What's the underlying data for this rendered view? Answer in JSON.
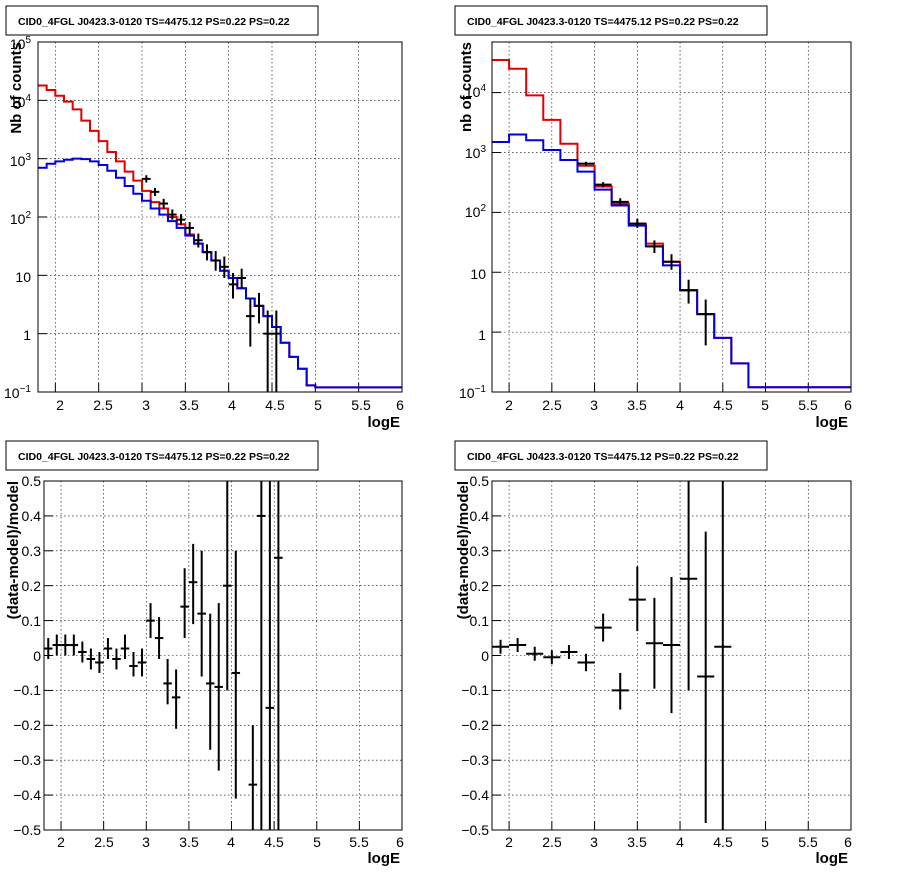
{
  "figure": {
    "panel_title": "CID0_4FGL J0423.3-0120 TS=4475.12 PS=0.22 PS=0.22"
  },
  "chart_data": [
    {
      "type": "histogram",
      "title": "CID0_4FGL J0423.3-0120 TS=4475.12 PS=0.22 PS=0.22",
      "xlabel": "logE",
      "ylabel": "Nb of counts",
      "xlim": [
        1.8,
        6.0
      ],
      "ylim": [
        0.1,
        100000
      ],
      "yscale": "log",
      "grid": true,
      "x_ticks": [
        2,
        2.5,
        3,
        3.5,
        4,
        4.5,
        5,
        5.5,
        6
      ],
      "x_tick_labels": [
        "2",
        "2.5",
        "3",
        "3.5",
        "4",
        "4.5",
        "5",
        "5.5",
        "6"
      ],
      "y_ticks": [
        0.1,
        1,
        10,
        100,
        1000,
        10000,
        100000
      ],
      "y_tick_labels": [
        {
          "base": "10",
          "exp": "−1"
        },
        {
          "base": "1",
          "exp": ""
        },
        {
          "base": "10",
          "exp": ""
        },
        {
          "base": "10",
          "exp": "2"
        },
        {
          "base": "10",
          "exp": "3"
        },
        {
          "base": "10",
          "exp": "4"
        },
        {
          "base": "10",
          "exp": "5"
        }
      ],
      "bin_edges": [
        1.8,
        1.9,
        2.0,
        2.1,
        2.2,
        2.3,
        2.4,
        2.5,
        2.6,
        2.7,
        2.8,
        2.9,
        3.0,
        3.1,
        3.2,
        3.3,
        3.4,
        3.5,
        3.6,
        3.7,
        3.8,
        3.9,
        4.0,
        4.1,
        4.2,
        4.3,
        4.4,
        4.5,
        4.6,
        4.7,
        4.8,
        4.9,
        5.0,
        5.1,
        5.2,
        5.3,
        5.4,
        5.5,
        5.6,
        5.7,
        5.8,
        5.9,
        6.0
      ],
      "series": [
        {
          "color": "#e00000",
          "values": [
            18000,
            15000,
            12000,
            9500,
            7000,
            4500,
            3000,
            2000,
            1300,
            900,
            600,
            420,
            280,
            180,
            140,
            100,
            75,
            50,
            35,
            25,
            18,
            12,
            9,
            6,
            4,
            3,
            2,
            1.3,
            0.7,
            0.4,
            0.25,
            0.13,
            0.12,
            0.12,
            0.12,
            0.12,
            0.12,
            0.12,
            0.12,
            0.12,
            0.12,
            0.12
          ]
        },
        {
          "color": "#0000e0",
          "values": [
            700,
            820,
            900,
            960,
            1000,
            980,
            900,
            780,
            620,
            470,
            340,
            250,
            190,
            140,
            110,
            85,
            65,
            48,
            35,
            25,
            18,
            12,
            9,
            6,
            4,
            3,
            2,
            1.3,
            0.7,
            0.4,
            0.25,
            0.13,
            0.12,
            0.12,
            0.12,
            0.12,
            0.12,
            0.12,
            0.12,
            0.12,
            0.12,
            0.12
          ]
        }
      ],
      "data_points": [
        {
          "x": 3.05,
          "y": 450,
          "ylow": 390,
          "yhigh": 520
        },
        {
          "x": 3.15,
          "y": 270,
          "ylow": 230,
          "yhigh": 315
        },
        {
          "x": 3.25,
          "y": 170,
          "ylow": 140,
          "yhigh": 205
        },
        {
          "x": 3.35,
          "y": 110,
          "ylow": 90,
          "yhigh": 135
        },
        {
          "x": 3.45,
          "y": 90,
          "ylow": 72,
          "yhigh": 112
        },
        {
          "x": 3.55,
          "y": 65,
          "ylow": 50,
          "yhigh": 82
        },
        {
          "x": 3.65,
          "y": 40,
          "ylow": 30,
          "yhigh": 52
        },
        {
          "x": 3.75,
          "y": 25,
          "ylow": 18,
          "yhigh": 34
        },
        {
          "x": 3.85,
          "y": 18,
          "ylow": 12,
          "yhigh": 26
        },
        {
          "x": 3.95,
          "y": 14,
          "ylow": 9,
          "yhigh": 21
        },
        {
          "x": 4.05,
          "y": 7,
          "ylow": 4,
          "yhigh": 11
        },
        {
          "x": 4.15,
          "y": 9,
          "ylow": 6,
          "yhigh": 13
        },
        {
          "x": 4.25,
          "y": 2,
          "ylow": 0.6,
          "yhigh": 4
        },
        {
          "x": 4.35,
          "y": 3,
          "ylow": 1.5,
          "yhigh": 5
        },
        {
          "x": 4.45,
          "y": 1,
          "ylow": 0.1,
          "yhigh": 2.5
        },
        {
          "x": 4.55,
          "y": 1,
          "ylow": 0.1,
          "yhigh": 2.5
        }
      ]
    },
    {
      "type": "histogram",
      "title": "CID0_4FGL J0423.3-0120 TS=4475.12 PS=0.22 PS=0.22",
      "xlabel": "logE",
      "ylabel": "nb of counts",
      "xlim": [
        1.8,
        6.0
      ],
      "ylim": [
        0.1,
        70000
      ],
      "yscale": "log",
      "grid": true,
      "x_ticks": [
        2,
        2.5,
        3,
        3.5,
        4,
        4.5,
        5,
        5.5,
        6
      ],
      "x_tick_labels": [
        "2",
        "2.5",
        "3",
        "3.5",
        "4",
        "4.5",
        "5",
        "5.5",
        "6"
      ],
      "y_ticks": [
        0.1,
        1,
        10,
        100,
        1000,
        10000
      ],
      "y_tick_labels": [
        {
          "base": "10",
          "exp": "−1"
        },
        {
          "base": "1",
          "exp": ""
        },
        {
          "base": "10",
          "exp": ""
        },
        {
          "base": "10",
          "exp": "2"
        },
        {
          "base": "10",
          "exp": "3"
        },
        {
          "base": "10",
          "exp": "4"
        }
      ],
      "bin_edges": [
        1.8,
        2.0,
        2.2,
        2.4,
        2.6,
        2.8,
        3.0,
        3.2,
        3.4,
        3.6,
        3.8,
        4.0,
        4.2,
        4.4,
        4.6,
        4.8,
        5.0,
        5.2,
        5.4,
        5.6,
        5.8,
        6.0
      ],
      "series": [
        {
          "color": "#e00000",
          "values": [
            35000,
            25000,
            9000,
            3500,
            1400,
            600,
            270,
            140,
            65,
            30,
            15,
            5,
            2,
            0.8,
            0.3,
            0.12,
            0.12,
            0.12,
            0.12,
            0.12,
            0.12
          ]
        },
        {
          "color": "#0000e0",
          "values": [
            1500,
            2000,
            1600,
            1100,
            750,
            480,
            240,
            130,
            60,
            27,
            13,
            5,
            2,
            0.8,
            0.3,
            0.12,
            0.12,
            0.12,
            0.12,
            0.12,
            0.12
          ]
        }
      ],
      "data_points": [
        {
          "x": 2.9,
          "y": 650,
          "ylow": 600,
          "yhigh": 700
        },
        {
          "x": 3.1,
          "y": 290,
          "ylow": 260,
          "yhigh": 320
        },
        {
          "x": 3.3,
          "y": 150,
          "ylow": 130,
          "yhigh": 172
        },
        {
          "x": 3.5,
          "y": 65,
          "ylow": 55,
          "yhigh": 78
        },
        {
          "x": 3.7,
          "y": 27,
          "ylow": 21,
          "yhigh": 34
        },
        {
          "x": 3.9,
          "y": 15,
          "ylow": 11,
          "yhigh": 20
        },
        {
          "x": 4.1,
          "y": 5,
          "ylow": 3,
          "yhigh": 7.5
        },
        {
          "x": 4.3,
          "y": 2,
          "ylow": 0.6,
          "yhigh": 3.5
        }
      ]
    },
    {
      "type": "scatter",
      "title": "CID0_4FGL J0423.3-0120 TS=4475.12 PS=0.22 PS=0.22",
      "xlabel": "logE",
      "ylabel": "(data-model)/model",
      "xlim": [
        1.8,
        6.0
      ],
      "ylim": [
        -0.5,
        0.5
      ],
      "yscale": "linear",
      "grid": true,
      "x_ticks": [
        2,
        2.5,
        3,
        3.5,
        4,
        4.5,
        5,
        5.5,
        6
      ],
      "x_tick_labels": [
        "2",
        "2.5",
        "3",
        "3.5",
        "4",
        "4.5",
        "5",
        "5.5",
        "6"
      ],
      "y_ticks": [
        -0.5,
        -0.4,
        -0.3,
        -0.2,
        -0.1,
        0,
        0.1,
        0.2,
        0.3,
        0.4,
        0.5
      ],
      "y_tick_labels": [
        "−0.5",
        "−0.4",
        "−0.3",
        "−0.2",
        "−0.1",
        "0",
        "0.1",
        "0.2",
        "0.3",
        "0.4",
        "0.5"
      ],
      "half_width": 0.05,
      "data_points": [
        {
          "x": 1.85,
          "y": 0.02,
          "ylow": -0.01,
          "yhigh": 0.05
        },
        {
          "x": 1.95,
          "y": 0.03,
          "ylow": 0.0,
          "yhigh": 0.06
        },
        {
          "x": 2.05,
          "y": 0.03,
          "ylow": 0.0,
          "yhigh": 0.06
        },
        {
          "x": 2.15,
          "y": 0.03,
          "ylow": 0.0,
          "yhigh": 0.06
        },
        {
          "x": 2.25,
          "y": 0.01,
          "ylow": -0.02,
          "yhigh": 0.04
        },
        {
          "x": 2.35,
          "y": -0.01,
          "ylow": -0.04,
          "yhigh": 0.02
        },
        {
          "x": 2.45,
          "y": -0.02,
          "ylow": -0.05,
          "yhigh": 0.01
        },
        {
          "x": 2.55,
          "y": 0.02,
          "ylow": -0.01,
          "yhigh": 0.05
        },
        {
          "x": 2.65,
          "y": -0.01,
          "ylow": -0.04,
          "yhigh": 0.02
        },
        {
          "x": 2.75,
          "y": 0.02,
          "ylow": -0.01,
          "yhigh": 0.06
        },
        {
          "x": 2.85,
          "y": -0.03,
          "ylow": -0.06,
          "yhigh": 0.01
        },
        {
          "x": 2.95,
          "y": -0.02,
          "ylow": -0.06,
          "yhigh": 0.02
        },
        {
          "x": 3.05,
          "y": 0.1,
          "ylow": 0.05,
          "yhigh": 0.15
        },
        {
          "x": 3.15,
          "y": 0.05,
          "ylow": -0.01,
          "yhigh": 0.11
        },
        {
          "x": 3.25,
          "y": -0.08,
          "ylow": -0.14,
          "yhigh": -0.01
        },
        {
          "x": 3.35,
          "y": -0.12,
          "ylow": -0.21,
          "yhigh": -0.04
        },
        {
          "x": 3.45,
          "y": 0.14,
          "ylow": 0.05,
          "yhigh": 0.25
        },
        {
          "x": 3.55,
          "y": 0.21,
          "ylow": 0.09,
          "yhigh": 0.32
        },
        {
          "x": 3.65,
          "y": 0.12,
          "ylow": -0.06,
          "yhigh": 0.3
        },
        {
          "x": 3.75,
          "y": -0.08,
          "ylow": -0.27,
          "yhigh": 0.12
        },
        {
          "x": 3.85,
          "y": -0.09,
          "ylow": -0.33,
          "yhigh": 0.15
        },
        {
          "x": 3.95,
          "y": 0.2,
          "ylow": -0.1,
          "yhigh": 0.5
        },
        {
          "x": 4.05,
          "y": -0.05,
          "ylow": -0.41,
          "yhigh": 0.3
        },
        {
          "x": 4.25,
          "y": -0.37,
          "ylow": -0.5,
          "yhigh": -0.2
        },
        {
          "x": 4.35,
          "y": 0.4,
          "ylow": -0.5,
          "yhigh": 0.5
        },
        {
          "x": 4.45,
          "y": -0.15,
          "ylow": -0.5,
          "yhigh": 0.5
        },
        {
          "x": 4.55,
          "y": 0.28,
          "ylow": -0.5,
          "yhigh": 0.5
        }
      ]
    },
    {
      "type": "scatter",
      "title": "CID0_4FGL J0423.3-0120 TS=4475.12 PS=0.22 PS=0.22",
      "xlabel": "logE",
      "ylabel": "(data-model)/model",
      "xlim": [
        1.8,
        6.0
      ],
      "ylim": [
        -0.5,
        0.5
      ],
      "yscale": "linear",
      "grid": true,
      "x_ticks": [
        2,
        2.5,
        3,
        3.5,
        4,
        4.5,
        5,
        5.5,
        6
      ],
      "x_tick_labels": [
        "2",
        "2.5",
        "3",
        "3.5",
        "4",
        "4.5",
        "5",
        "5.5",
        "6"
      ],
      "y_ticks": [
        -0.5,
        -0.4,
        -0.3,
        -0.2,
        -0.1,
        0,
        0.1,
        0.2,
        0.3,
        0.4,
        0.5
      ],
      "y_tick_labels": [
        "−0.5",
        "−0.4",
        "−0.3",
        "−0.2",
        "−0.1",
        "0",
        "0.1",
        "0.2",
        "0.3",
        "0.4",
        "0.5"
      ],
      "half_width": 0.1,
      "data_points": [
        {
          "x": 1.9,
          "y": 0.025,
          "ylow": 0.005,
          "yhigh": 0.045
        },
        {
          "x": 2.1,
          "y": 0.03,
          "ylow": 0.01,
          "yhigh": 0.05
        },
        {
          "x": 2.3,
          "y": 0.005,
          "ylow": -0.015,
          "yhigh": 0.025
        },
        {
          "x": 2.5,
          "y": -0.005,
          "ylow": -0.025,
          "yhigh": 0.015
        },
        {
          "x": 2.7,
          "y": 0.01,
          "ylow": -0.01,
          "yhigh": 0.03
        },
        {
          "x": 2.9,
          "y": -0.02,
          "ylow": -0.045,
          "yhigh": 0.005
        },
        {
          "x": 3.1,
          "y": 0.08,
          "ylow": 0.04,
          "yhigh": 0.12
        },
        {
          "x": 3.3,
          "y": -0.1,
          "ylow": -0.155,
          "yhigh": -0.05
        },
        {
          "x": 3.5,
          "y": 0.16,
          "ylow": 0.07,
          "yhigh": 0.255
        },
        {
          "x": 3.7,
          "y": 0.035,
          "ylow": -0.095,
          "yhigh": 0.165
        },
        {
          "x": 3.9,
          "y": 0.03,
          "ylow": -0.165,
          "yhigh": 0.225
        },
        {
          "x": 4.1,
          "y": 0.22,
          "ylow": -0.1,
          "yhigh": 0.5
        },
        {
          "x": 4.3,
          "y": -0.06,
          "ylow": -0.48,
          "yhigh": 0.355
        },
        {
          "x": 4.5,
          "y": 0.025,
          "ylow": -0.5,
          "yhigh": 0.5
        }
      ]
    }
  ]
}
